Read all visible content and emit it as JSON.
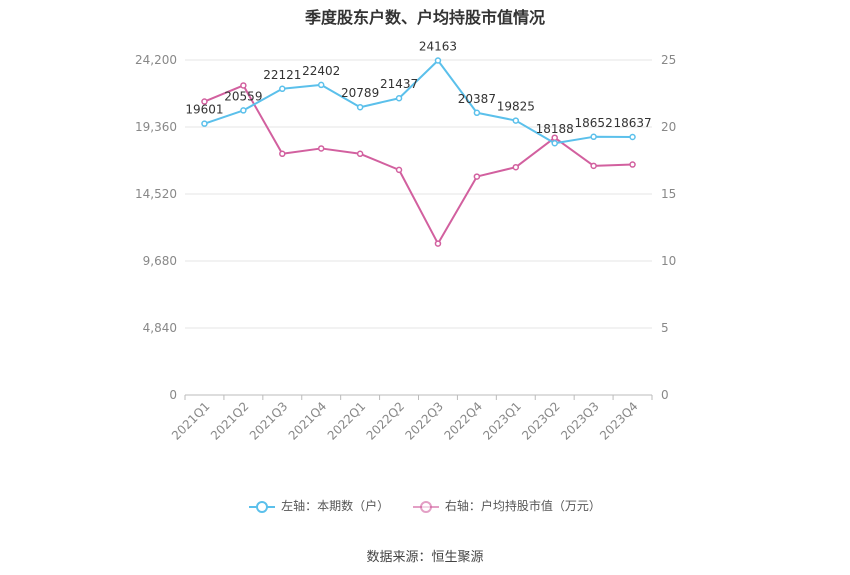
{
  "title": "季度股东户数、户均持股市值情况",
  "source": "数据来源：恒生聚源",
  "chart_data": {
    "type": "line",
    "categories": [
      "2021Q1",
      "2021Q2",
      "2021Q3",
      "2021Q4",
      "2022Q1",
      "2022Q2",
      "2022Q3",
      "2022Q4",
      "2023Q1",
      "2023Q2",
      "2023Q3",
      "2023Q4"
    ],
    "series": [
      {
        "name": "左轴：本期数（户）",
        "axis": "left",
        "color": "#5bc0eb",
        "values": [
          19601,
          20559,
          22121,
          22402,
          20789,
          21437,
          24163,
          20387,
          19825,
          18188,
          18652,
          18637
        ],
        "labels": [
          "19601",
          "20559",
          "22121",
          "22402",
          "20789",
          "21437",
          "24163",
          "20387",
          "19825",
          "18188",
          "18652",
          "18637"
        ]
      },
      {
        "name": "右轴：户均持股市值（万元）",
        "axis": "right",
        "color": "#d2609f",
        "values": [
          21.9,
          23.1,
          18.0,
          18.4,
          18.0,
          16.8,
          11.3,
          16.3,
          17.0,
          19.2,
          17.1,
          17.2
        ]
      }
    ],
    "y_left": {
      "ticks": [
        0,
        4840,
        9680,
        14520,
        19360,
        24200
      ],
      "tick_labels": [
        "0",
        "4,840",
        "9,680",
        "14,520",
        "19,360",
        "24,200"
      ],
      "range": [
        0,
        24200
      ]
    },
    "y_right": {
      "ticks": [
        0,
        5,
        10,
        15,
        20,
        25
      ],
      "tick_labels": [
        "0",
        "5",
        "10",
        "15",
        "20",
        "25"
      ],
      "range": [
        0,
        25
      ]
    },
    "grid": true,
    "legend_position": "bottom"
  }
}
